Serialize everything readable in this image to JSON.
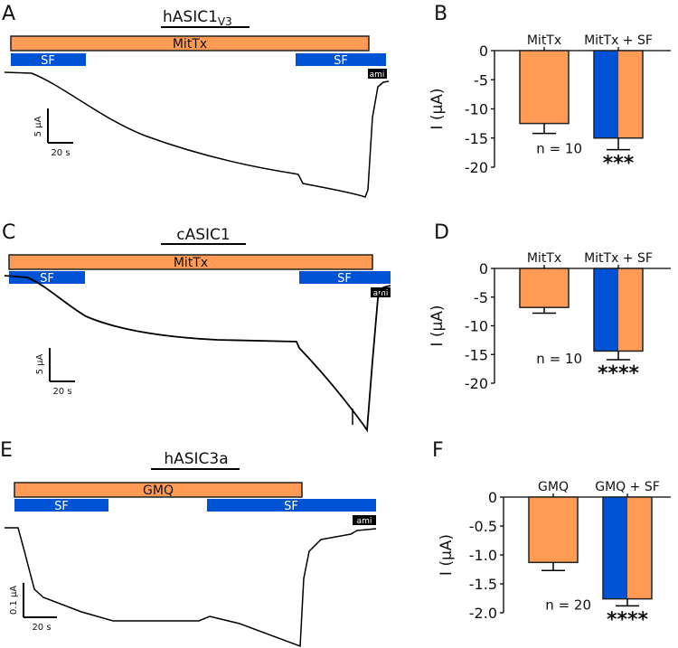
{
  "panels": {
    "A": {
      "letter": "A",
      "title": "hASIC1",
      "title_sub": "V3",
      "agonist": "MitTx",
      "sf1": "SF",
      "sf2": "SF",
      "ami": "ami",
      "scale_y": "5 µA",
      "scale_x": "20 s"
    },
    "C": {
      "letter": "C",
      "title": "cASIC1",
      "agonist": "MitTx",
      "sf1": "SF",
      "sf2": "SF",
      "ami": "ami",
      "scale_y": "5 µA",
      "scale_x": "20 s"
    },
    "E": {
      "letter": "E",
      "title": "hASIC3a",
      "agonist": "GMQ",
      "sf1": "SF",
      "sf2": "SF",
      "ami": "ami",
      "scale_y": "0.1 µA",
      "scale_x": "20 s"
    }
  },
  "colors": {
    "agonist": "#FF9B55",
    "sf": "#0052D4",
    "ami": "#000000",
    "trace": "#000000"
  },
  "chart_data": [
    {
      "type": "bar",
      "panel": "B",
      "categories": [
        "MitTx",
        "MitTx + SF"
      ],
      "values": [
        -12.5,
        -15.0
      ],
      "errors": [
        1.7,
        2.0
      ],
      "ylabel": "I (µA)",
      "ylim": [
        -20,
        0
      ],
      "yticks": [
        "0",
        "-5",
        "-10",
        "-15",
        "-20"
      ],
      "ytick_values": [
        0,
        -5,
        -10,
        -15,
        -20
      ],
      "n_label": "n = 10",
      "significance": "***"
    },
    {
      "type": "bar",
      "panel": "D",
      "categories": [
        "MitTx",
        "MitTx + SF"
      ],
      "values": [
        -6.8,
        -14.4
      ],
      "errors": [
        1.0,
        1.5
      ],
      "ylabel": "I (µA)",
      "ylim": [
        -20,
        0
      ],
      "yticks": [
        "0",
        "-5",
        "-10",
        "-15",
        "-20"
      ],
      "ytick_values": [
        0,
        -5,
        -10,
        -15,
        -20
      ],
      "n_label": "n = 10",
      "significance": "****"
    },
    {
      "type": "bar",
      "panel": "F",
      "categories": [
        "GMQ",
        "GMQ + SF"
      ],
      "values": [
        -1.13,
        -1.76
      ],
      "errors": [
        0.14,
        0.12
      ],
      "ylabel": "I (µA)",
      "ylim": [
        -2.0,
        0
      ],
      "yticks": [
        "0",
        "-0.5",
        "-1.0",
        "-1.5",
        "-2.0"
      ],
      "ytick_values": [
        0,
        -0.5,
        -1.0,
        -1.5,
        -2.0
      ],
      "n_label": "n = 20",
      "significance": "****"
    }
  ]
}
